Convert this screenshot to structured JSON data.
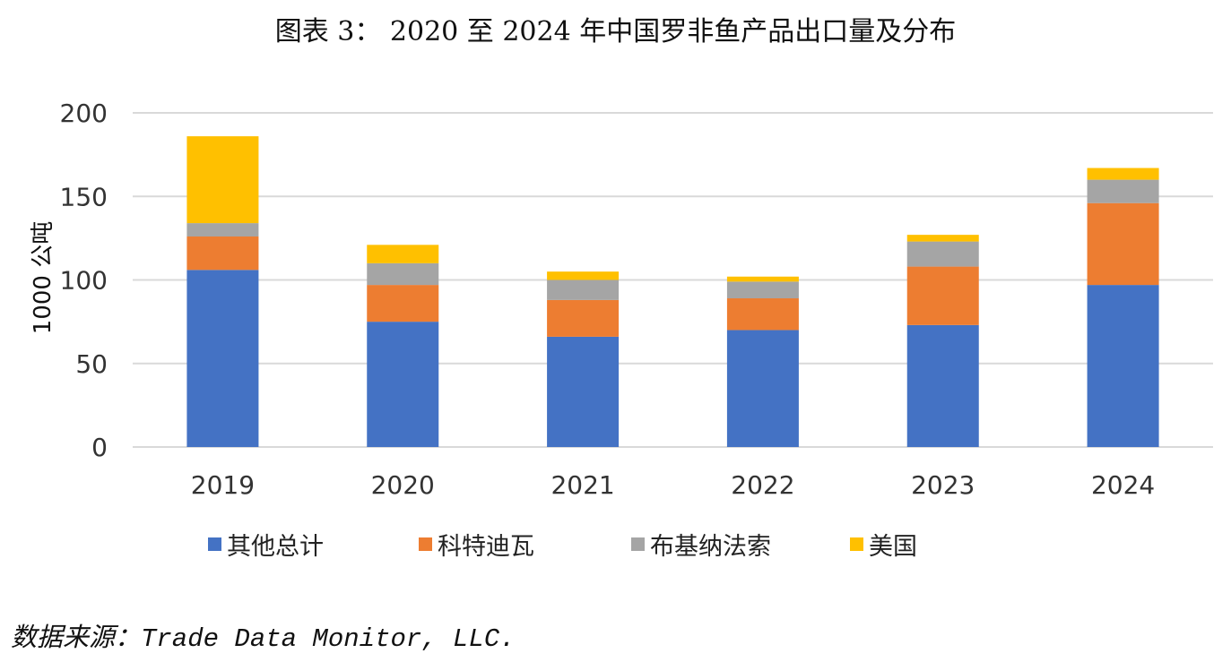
{
  "title": "图表 3：  2020 至 2024 年中国罗非鱼产品出口量及分布",
  "source": "数据来源：Trade Data Monitor, LLC.",
  "chart_data": {
    "type": "bar",
    "stacked": true,
    "title": "图表 3：  2020 至 2024 年中国罗非鱼产品出口量及分布",
    "xlabel": "",
    "ylabel": "1000 公吨",
    "ylim": [
      0,
      200
    ],
    "yticks": [
      0,
      50,
      100,
      150,
      200
    ],
    "grid": true,
    "legend_position": "bottom",
    "categories": [
      "2019",
      "2020",
      "2021",
      "2022",
      "2023",
      "2024"
    ],
    "series": [
      {
        "name": "其他总计",
        "color": "#4472C4",
        "values": [
          106,
          75,
          66,
          70,
          73,
          97
        ]
      },
      {
        "name": "科特迪瓦",
        "color": "#ED7D31",
        "values": [
          20,
          22,
          22,
          19,
          35,
          49
        ]
      },
      {
        "name": "布基纳法索",
        "color": "#A5A5A5",
        "values": [
          8,
          13,
          12,
          10,
          15,
          14
        ]
      },
      {
        "name": "美国",
        "color": "#FFC000",
        "values": [
          52,
          11,
          5,
          3,
          4,
          7
        ]
      }
    ]
  }
}
